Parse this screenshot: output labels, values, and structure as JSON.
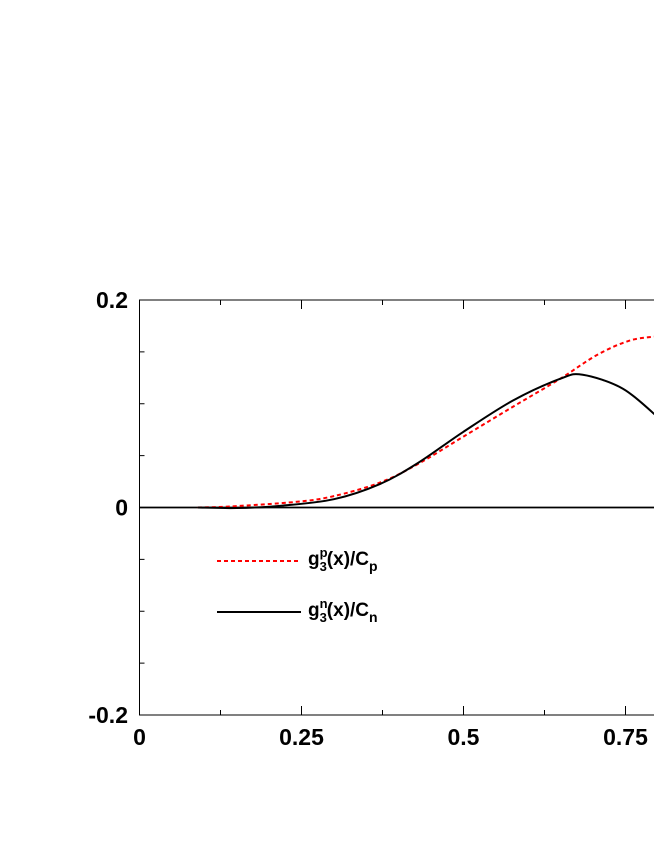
{
  "chart_data": {
    "type": "line",
    "title": "",
    "xlabel": "",
    "ylabel": "",
    "xlim": [
      0,
      1
    ],
    "ylim": [
      -0.2,
      0.2
    ],
    "x_ticks": [
      {
        "value": 0,
        "label": "0"
      },
      {
        "value": 0.25,
        "label": "0.25"
      },
      {
        "value": 0.5,
        "label": "0.5"
      },
      {
        "value": 0.75,
        "label": "0.75"
      }
    ],
    "y_ticks": [
      {
        "value": 0.2,
        "label": "0.2"
      },
      {
        "value": 0,
        "label": "0"
      },
      {
        "value": -0.2,
        "label": "-0.2"
      }
    ],
    "grid": false,
    "zero_line": true,
    "legend_position": "center-left",
    "series": [
      {
        "name": "g3p(x)/Cp",
        "label_parts": {
          "base": "g",
          "sup": "p",
          "sub": "3",
          "rest": "(x)/C",
          "rest_sub": "p"
        },
        "color": "#ff0000",
        "style": "dashed",
        "x": [
          0.09,
          0.14,
          0.243,
          0.3,
          0.371,
          0.43,
          0.499,
          0.576,
          0.649,
          0.706,
          0.757,
          0.8
        ],
        "y": [
          0.0,
          0.001,
          0.0055,
          0.011,
          0.024,
          0.042,
          0.068,
          0.097,
          0.124,
          0.147,
          0.161,
          0.165
        ]
      },
      {
        "name": "g3n(x)/Cn",
        "label_parts": {
          "base": "g",
          "sup": "n",
          "sub": "3",
          "rest": "(x)/C",
          "rest_sub": "n"
        },
        "color": "#000000",
        "style": "solid",
        "x": [
          0.09,
          0.15,
          0.217,
          0.3,
          0.371,
          0.43,
          0.499,
          0.576,
          0.649,
          0.684,
          0.746,
          0.8
        ],
        "y": [
          0.0,
          -0.0005,
          0.0016,
          0.008,
          0.0226,
          0.043,
          0.0726,
          0.103,
          0.124,
          0.128,
          0.1145,
          0.087
        ]
      }
    ]
  }
}
